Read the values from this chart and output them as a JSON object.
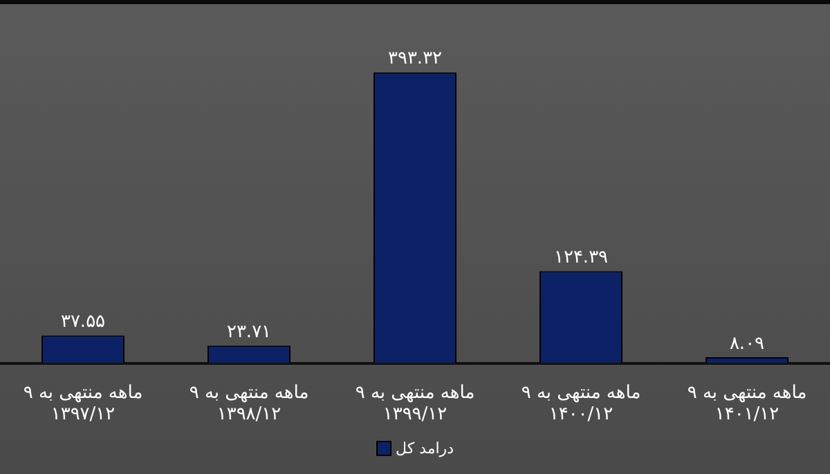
{
  "chart_data": {
    "type": "bar",
    "categories": [
      "۹ ماهه منتهی به\n۱۳۹۷/۱۲",
      "۹ ماهه منتهی به\n۱۳۹۸/۱۲",
      "۹ ماهه منتهی به\n۱۳۹۹/۱۲",
      "۹ ماهه منتهی به\n۱۴۰۰/۱۲",
      "۹ ماهه منتهی به\n۱۴۰۱/۱۲"
    ],
    "series": [
      {
        "name": "درامد کل",
        "color": "#0d2266",
        "values": [
          37.55,
          23.71,
          393.32,
          124.39,
          8.09
        ],
        "value_labels": [
          "۳۷.۵۵",
          "۲۳.۷۱",
          "۳۹۳.۳۲",
          "۱۲۴.۳۹",
          "۸.۰۹"
        ]
      }
    ],
    "legend": "bottom",
    "grid": false
  }
}
